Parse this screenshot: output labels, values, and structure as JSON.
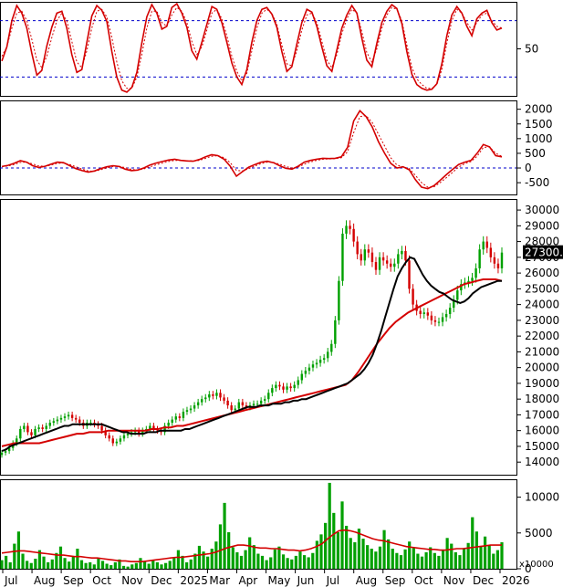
{
  "chart_data": [
    {
      "panel": "stochastic",
      "type": "line",
      "y_ticks": [
        50
      ],
      "y_tick_labels": [
        "50"
      ],
      "ylim": [
        0,
        100
      ],
      "reference_lines": [
        80,
        20
      ],
      "colors": {
        "k": "#d40000",
        "d": "#d40000",
        "ref": "#0000cc"
      },
      "series": [
        {
          "key": "k",
          "values": [
            37,
            52,
            80,
            96,
            88,
            72,
            45,
            22,
            27,
            53,
            73,
            88,
            90,
            72,
            44,
            25,
            28,
            57,
            85,
            96,
            91,
            79,
            47,
            20,
            6,
            4,
            9,
            25,
            56,
            84,
            97,
            88,
            71,
            74,
            94,
            98,
            88,
            73,
            48,
            39,
            57,
            76,
            95,
            92,
            78,
            57,
            35,
            20,
            12,
            28,
            57,
            80,
            92,
            94,
            87,
            73,
            47,
            26,
            31,
            55,
            78,
            92,
            89,
            74,
            52,
            32,
            26,
            49,
            72,
            86,
            96,
            88,
            61,
            38,
            31,
            56,
            78,
            90,
            97,
            93,
            77,
            47,
            23,
            12,
            8,
            6,
            7,
            13,
            34,
            64,
            86,
            95,
            88,
            74,
            64,
            82,
            88,
            91,
            78,
            70,
            72
          ]
        },
        {
          "key": "d",
          "values": [
            42,
            52,
            72,
            88,
            90,
            80,
            60,
            38,
            30,
            42,
            62,
            80,
            88,
            80,
            58,
            36,
            30,
            48,
            72,
            90,
            92,
            84,
            62,
            36,
            16,
            8,
            8,
            20,
            44,
            72,
            90,
            90,
            78,
            74,
            86,
            94,
            90,
            78,
            58,
            44,
            52,
            70,
            88,
            92,
            82,
            64,
            42,
            26,
            16,
            24,
            48,
            72,
            88,
            92,
            88,
            76,
            54,
            34,
            32,
            48,
            70,
            86,
            88,
            78,
            58,
            38,
            30,
            44,
            66,
            82,
            92,
            88,
            68,
            46,
            36,
            50,
            72,
            86,
            94,
            92,
            80,
            54,
            30,
            18,
            12,
            8,
            8,
            12,
            28,
            56,
            80,
            92,
            88,
            78,
            70,
            78,
            86,
            88,
            80,
            74,
            72
          ]
        }
      ]
    },
    {
      "panel": "macd",
      "type": "line",
      "y_ticks": [
        2000,
        1500,
        1000,
        500,
        0,
        -500
      ],
      "y_tick_labels": [
        "2000",
        "1500",
        "1000",
        "500",
        "0",
        "-500"
      ],
      "ylim": [
        -900,
        2300
      ],
      "reference_lines": [
        0
      ],
      "colors": {
        "macd": "#d40000",
        "signal": "#d40000",
        "ref": "#0000cc"
      },
      "series": [
        {
          "key": "macd",
          "values": [
            50,
            90,
            160,
            250,
            200,
            80,
            20,
            60,
            130,
            200,
            180,
            80,
            -20,
            -90,
            -140,
            -100,
            -20,
            40,
            80,
            50,
            -40,
            -90,
            -70,
            0,
            100,
            170,
            220,
            270,
            300,
            260,
            240,
            230,
            290,
            380,
            450,
            420,
            300,
            60,
            -280,
            -120,
            30,
            120,
            200,
            230,
            180,
            80,
            -10,
            -40,
            60,
            200,
            260,
            300,
            330,
            320,
            330,
            380,
            700,
            1600,
            1950,
            1750,
            1400,
            900,
            500,
            160,
            0,
            40,
            -60,
            -400,
            -650,
            -700,
            -600,
            -420,
            -230,
            -50,
            120,
            200,
            260,
            500,
            800,
            720,
            420,
            380
          ]
        },
        {
          "key": "signal",
          "values": [
            40,
            70,
            120,
            190,
            200,
            140,
            70,
            60,
            100,
            160,
            170,
            120,
            40,
            -40,
            -100,
            -110,
            -60,
            0,
            50,
            60,
            10,
            -50,
            -70,
            -30,
            40,
            110,
            170,
            220,
            260,
            260,
            250,
            240,
            260,
            330,
            400,
            420,
            350,
            180,
            -80,
            -100,
            -20,
            70,
            150,
            200,
            190,
            130,
            50,
            0,
            30,
            130,
            210,
            260,
            300,
            310,
            320,
            350,
            550,
            1200,
            1750,
            1780,
            1550,
            1150,
            750,
            350,
            100,
            40,
            -20,
            -250,
            -500,
            -650,
            -640,
            -500,
            -330,
            -150,
            30,
            150,
            220,
            400,
            700,
            720,
            500,
            400
          ]
        }
      ]
    },
    {
      "panel": "price",
      "type": "candlestick",
      "last_price_label": "27300.00",
      "y_ticks": [
        30000,
        29000,
        28000,
        27000,
        26000,
        25000,
        24000,
        23000,
        22000,
        21000,
        20000,
        19000,
        18000,
        17000,
        16000,
        15000,
        14000
      ],
      "y_tick_labels": [
        "30000",
        "29000",
        "28000",
        "27000",
        "26000",
        "25000",
        "24000",
        "23000",
        "22000",
        "21000",
        "20000",
        "19000",
        "18000",
        "17000",
        "16000",
        "15000",
        "14000"
      ],
      "ylim": [
        13200,
        30700
      ],
      "colors": {
        "up": "#00a000",
        "down": "#d40000",
        "ma_short": "#000000",
        "ma_long": "#d40000"
      },
      "close": [
        14600,
        14700,
        14900,
        15200,
        15500,
        16100,
        16300,
        15900,
        15700,
        16100,
        16200,
        16100,
        16300,
        16500,
        16600,
        16700,
        16800,
        16900,
        17000,
        16800,
        16700,
        16500,
        16300,
        16500,
        16500,
        16400,
        16300,
        16000,
        15700,
        15500,
        15200,
        15300,
        15500,
        15700,
        15800,
        15900,
        16000,
        15800,
        16000,
        16100,
        16300,
        16100,
        16000,
        15900,
        16300,
        16500,
        16700,
        16900,
        16800,
        17200,
        17300,
        17400,
        17600,
        17800,
        18000,
        18100,
        18300,
        18200,
        18400,
        18100,
        17900,
        17600,
        17300,
        17400,
        17800,
        17600,
        17500,
        17600,
        17700,
        17700,
        17900,
        18000,
        18400,
        18700,
        18900,
        18800,
        18600,
        18800,
        18700,
        18900,
        19200,
        19600,
        19800,
        20000,
        20200,
        20300,
        20500,
        20600,
        21000,
        21500,
        23000,
        25500,
        28500,
        29000,
        28800,
        28000,
        27200,
        26800,
        27500,
        27300,
        26700,
        26200,
        27000,
        26800,
        26600,
        26400,
        26600,
        27200,
        27400,
        26800,
        25000,
        24000,
        23600,
        23400,
        23500,
        23300,
        23000,
        22900,
        22900,
        23200,
        23400,
        23800,
        24300,
        24900,
        25300,
        25400,
        25500,
        25700,
        26300,
        27500,
        28000,
        27600,
        27000,
        26600,
        26300,
        27300
      ],
      "ma_short": [
        14700,
        14800,
        15000,
        15100,
        15200,
        15300,
        15400,
        15500,
        15600,
        15700,
        15800,
        15900,
        16000,
        16100,
        16200,
        16300,
        16300,
        16400,
        16400,
        16400,
        16400,
        16400,
        16400,
        16400,
        16400,
        16300,
        16200,
        16100,
        16000,
        15900,
        15900,
        15800,
        15800,
        15800,
        15800,
        15900,
        15900,
        15900,
        16000,
        16000,
        16000,
        16000,
        16000,
        16000,
        16100,
        16100,
        16200,
        16300,
        16400,
        16500,
        16600,
        16700,
        16800,
        16900,
        17000,
        17100,
        17200,
        17300,
        17400,
        17500,
        17500,
        17500,
        17600,
        17600,
        17600,
        17700,
        17700,
        17700,
        17800,
        17800,
        17900,
        17900,
        18000,
        18000,
        18100,
        18200,
        18300,
        18400,
        18500,
        18600,
        18700,
        18800,
        18900,
        19000,
        19200,
        19400,
        19600,
        19900,
        20300,
        20800,
        21500,
        22300,
        23200,
        24100,
        25000,
        25800,
        26300,
        26700,
        27000,
        26900,
        26400,
        25900,
        25500,
        25200,
        25000,
        24800,
        24700,
        24500,
        24300,
        24200,
        24100,
        24200,
        24400,
        24700,
        24900,
        25100,
        25200,
        25300,
        25400,
        25500,
        25500
      ],
      "ma_long": [
        15000,
        15100,
        15200,
        15200,
        15200,
        15200,
        15200,
        15300,
        15400,
        15500,
        15600,
        15700,
        15800,
        15800,
        15900,
        15900,
        15900,
        16000,
        16000,
        16000,
        16000,
        16000,
        16000,
        16000,
        16100,
        16100,
        16200,
        16200,
        16300,
        16300,
        16400,
        16500,
        16600,
        16700,
        16800,
        16900,
        17000,
        17100,
        17200,
        17300,
        17400,
        17500,
        17600,
        17700,
        17800,
        17900,
        18000,
        18100,
        18200,
        18300,
        18400,
        18500,
        18600,
        18700,
        18800,
        18900,
        19200,
        19700,
        20300,
        20900,
        21500,
        22000,
        22500,
        22900,
        23200,
        23500,
        23700,
        23900,
        24100,
        24300,
        24500,
        24700,
        24900,
        25100,
        25300,
        25400,
        25500,
        25600,
        25600,
        25600,
        25500
      ]
    },
    {
      "panel": "volume",
      "type": "bar",
      "unit_label": "x10000",
      "y_ticks": [
        10000,
        5000,
        0
      ],
      "y_tick_labels": [
        "10000",
        "5000",
        "0"
      ],
      "ylim": [
        0,
        12500
      ],
      "colors": {
        "bar": "#00a000",
        "ma": "#d40000"
      },
      "volume": [
        1200,
        1800,
        900,
        3500,
        5200,
        2100,
        1100,
        800,
        1400,
        2600,
        1700,
        900,
        1300,
        2200,
        3100,
        1500,
        1000,
        1700,
        2800,
        1200,
        800,
        900,
        600,
        1400,
        1100,
        700,
        500,
        900,
        1300,
        400,
        300,
        600,
        800,
        1500,
        1000,
        700,
        1200,
        900,
        600,
        800,
        1100,
        1500,
        2600,
        1800,
        900,
        1300,
        2100,
        3200,
        2400,
        1700,
        2800,
        3800,
        6200,
        9200,
        5100,
        3000,
        2300,
        1800,
        2600,
        4400,
        3300,
        2100,
        1800,
        1200,
        1600,
        2700,
        3100,
        2000,
        1500,
        1300,
        1800,
        2400,
        1900,
        1600,
        2200,
        3900,
        4800,
        6400,
        12000,
        7800,
        5100,
        9400,
        6000,
        4300,
        3700,
        5600,
        4200,
        3300,
        2800,
        2400,
        3100,
        5400,
        4100,
        2800,
        2200,
        1900,
        2700,
        3800,
        2900,
        2100,
        1700,
        2300,
        3000,
        2200,
        1800,
        2600,
        4300,
        3500,
        2300,
        1900,
        2800,
        3600,
        7200,
        5200,
        3100,
        4500,
        3300,
        2100,
        2600,
        3700
      ],
      "ma": [
        2200,
        2300,
        2400,
        2500,
        2500,
        2400,
        2300,
        2200,
        2100,
        2000,
        1900,
        1900,
        1800,
        1700,
        1700,
        1600,
        1500,
        1500,
        1400,
        1300,
        1200,
        1100,
        1100,
        1000,
        1000,
        1000,
        1100,
        1200,
        1300,
        1400,
        1500,
        1600,
        1600,
        1700,
        1800,
        1900,
        2000,
        2100,
        2300,
        2600,
        2900,
        3100,
        3300,
        3300,
        3200,
        3000,
        2900,
        2900,
        2800,
        2800,
        2700,
        2600,
        2600,
        2500,
        2600,
        2800,
        3100,
        3500,
        4200,
        4800,
        5300,
        5400,
        5300,
        5100,
        4800,
        4500,
        4200,
        4000,
        3900,
        3700,
        3500,
        3300,
        3100,
        3000,
        2900,
        2800,
        2700,
        2700,
        2600,
        2600,
        2700,
        2800,
        2800,
        2900,
        3000,
        3100,
        3200,
        3300,
        3300,
        3300
      ]
    },
    {
      "panel": "x_axis",
      "month_labels": [
        "Jul",
        "Aug",
        "Sep",
        "Oct",
        "Nov",
        "Dec",
        "2025",
        "Mar",
        "Apr",
        "May",
        "Jun",
        "Jul",
        "Aug",
        "Sep",
        "Oct",
        "Nov",
        "Dec",
        "2026"
      ]
    }
  ]
}
